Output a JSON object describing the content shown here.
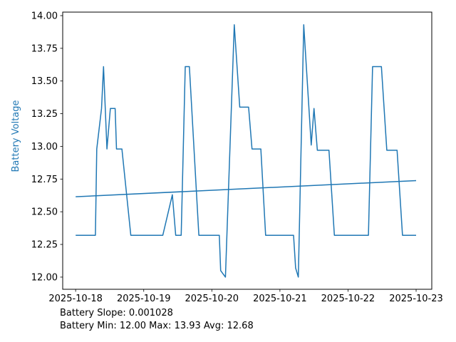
{
  "chart_data": {
    "type": "line",
    "title": "",
    "xlabel": "",
    "ylabel": "Battery Voltage",
    "grid": false,
    "legend": null,
    "x_unit": "days since first tick",
    "x_tick_days": [
      0,
      1,
      2,
      3,
      4,
      5
    ],
    "x_tick_labels": [
      "2025-10-18",
      "2025-10-19",
      "2025-10-20",
      "2025-10-21",
      "2025-10-22",
      "2025-10-23"
    ],
    "y_ticks": [
      12.0,
      12.25,
      12.5,
      12.75,
      13.0,
      13.25,
      13.5,
      13.75,
      14.0
    ],
    "xlim": [
      -0.19,
      5.23
    ],
    "ylim": [
      11.907,
      14.027
    ],
    "series": [
      {
        "name": "battery-voltage",
        "color": "#1f77b4",
        "width": 1.5,
        "points": [
          [
            0.0,
            12.32
          ],
          [
            0.29,
            12.32
          ],
          [
            0.31,
            12.98
          ],
          [
            0.38,
            13.29
          ],
          [
            0.41,
            13.61
          ],
          [
            0.46,
            12.98
          ],
          [
            0.51,
            13.29
          ],
          [
            0.58,
            13.29
          ],
          [
            0.6,
            12.98
          ],
          [
            0.68,
            12.98
          ],
          [
            0.81,
            12.32
          ],
          [
            1.28,
            12.32
          ],
          [
            1.42,
            12.63
          ],
          [
            1.47,
            12.32
          ],
          [
            1.55,
            12.32
          ],
          [
            1.61,
            13.61
          ],
          [
            1.67,
            13.61
          ],
          [
            1.81,
            12.32
          ],
          [
            2.11,
            12.32
          ],
          [
            2.13,
            12.05
          ],
          [
            2.2,
            12.0
          ],
          [
            2.33,
            13.93
          ],
          [
            2.41,
            13.3
          ],
          [
            2.54,
            13.3
          ],
          [
            2.59,
            12.98
          ],
          [
            2.72,
            12.98
          ],
          [
            2.79,
            12.32
          ],
          [
            3.2,
            12.32
          ],
          [
            3.23,
            12.07
          ],
          [
            3.27,
            12.0
          ],
          [
            3.35,
            13.93
          ],
          [
            3.46,
            13.01
          ],
          [
            3.5,
            13.29
          ],
          [
            3.55,
            12.97
          ],
          [
            3.72,
            12.97
          ],
          [
            3.8,
            12.32
          ],
          [
            4.3,
            12.32
          ],
          [
            4.36,
            13.61
          ],
          [
            4.49,
            13.61
          ],
          [
            4.57,
            12.97
          ],
          [
            4.72,
            12.97
          ],
          [
            4.8,
            12.32
          ],
          [
            5.0,
            12.32
          ]
        ]
      },
      {
        "name": "battery-trend",
        "color": "#1f77b4",
        "width": 1.5,
        "points": [
          [
            0.0,
            12.615
          ],
          [
            5.0,
            12.738
          ]
        ]
      }
    ],
    "stats": {
      "slope": 0.001028,
      "min": 12.0,
      "max": 13.93,
      "avg": 12.68
    }
  },
  "annotation": {
    "line1": "Battery Slope: 0.001028",
    "line2": "Battery Min: 12.00 Max: 13.93 Avg: 12.68"
  },
  "colors": {
    "line": "#1f77b4",
    "ylabel": "#1f77b4",
    "axis": "#000000",
    "tick_text": "#000000",
    "background": "#ffffff"
  }
}
